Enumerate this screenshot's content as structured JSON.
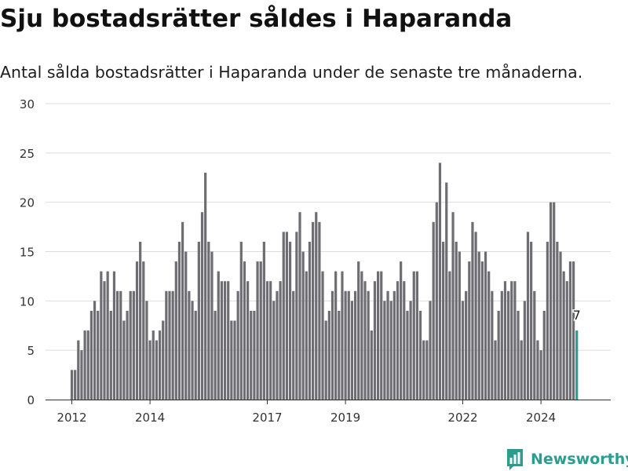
{
  "header": {
    "title": "Sju bostadsrätter såldes i Haparanda",
    "subtitle": "Antal sålda bostadsrätter i Haparanda under de senaste tre månaderna."
  },
  "brand": {
    "name": "Newsworthy",
    "color": "#2a9d8f",
    "icon": "bar-chart-speech-bubble-icon"
  },
  "chart_data": {
    "type": "bar",
    "title": "",
    "xlabel": "",
    "ylabel": "",
    "ylim": [
      0,
      30
    ],
    "y_ticks": [
      0,
      5,
      10,
      15,
      20,
      25,
      30
    ],
    "x_tick_labels": [
      "2012",
      "2014",
      "2017",
      "2019",
      "2022",
      "2024"
    ],
    "grid": true,
    "legend": "none",
    "colors": {
      "bar": "#6e6d72",
      "highlight": "#2a9d8f",
      "grid": "#dddddd",
      "axis": "#333333"
    },
    "x_start": "2012-01",
    "values": [
      3,
      3,
      6,
      5,
      7,
      7,
      9,
      10,
      9,
      13,
      12,
      13,
      9,
      13,
      11,
      11,
      8,
      9,
      11,
      11,
      14,
      16,
      14,
      10,
      6,
      7,
      6,
      7,
      8,
      11,
      11,
      11,
      14,
      16,
      18,
      15,
      11,
      10,
      9,
      16,
      19,
      23,
      16,
      15,
      9,
      13,
      12,
      12,
      12,
      8,
      8,
      11,
      16,
      14,
      12,
      9,
      9,
      14,
      14,
      16,
      12,
      12,
      10,
      11,
      12,
      17,
      17,
      16,
      11,
      17,
      19,
      15,
      13,
      16,
      18,
      19,
      18,
      13,
      8,
      9,
      11,
      13,
      9,
      13,
      11,
      11,
      10,
      11,
      14,
      13,
      12,
      11,
      7,
      12,
      13,
      13,
      10,
      11,
      10,
      11,
      12,
      14,
      12,
      9,
      10,
      13,
      13,
      9,
      6,
      6,
      10,
      18,
      20,
      24,
      16,
      22,
      13,
      19,
      16,
      15,
      10,
      11,
      14,
      18,
      17,
      15,
      14,
      15,
      13,
      11,
      6,
      9,
      11,
      12,
      11,
      12,
      12,
      9,
      6,
      10,
      17,
      16,
      11,
      6,
      5,
      9,
      16,
      20,
      20,
      16,
      15,
      13,
      12,
      14,
      14,
      7
    ],
    "highlight": {
      "label": "7",
      "value": 7
    }
  }
}
